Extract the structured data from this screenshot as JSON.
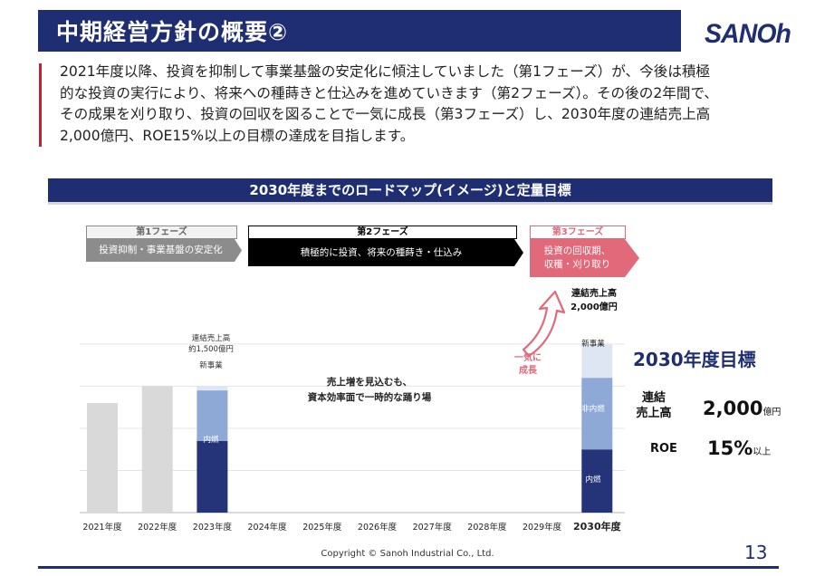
{
  "header": {
    "title": "中期経営方針の概要②",
    "logo_text": "SANOh"
  },
  "intro": {
    "lines": [
      "2021年度以降、投資を抑制して事業基盤の安定化に傾注していました（第1フェーズ）が、今後は積極",
      "的な投資の実行により、将来への種蒔きと仕込みを進めていきます（第2フェーズ）。その後の2年間で、",
      "その成果を刈り取り、投資の回収を図ることで一気に成長（第3フェーズ）し、2030年度の連結売上高",
      "2,000億円、ROE15%以上の目標の達成を目指します。"
    ]
  },
  "roadmap": {
    "title": "2030年度までのロードマップ(イメージ)と定量目標",
    "phases": [
      {
        "label": "第1フェーズ",
        "desc": [
          "投資抑制・事業基盤の安定化"
        ],
        "color": "#8c8c8c"
      },
      {
        "label": "第2フェーズ",
        "desc": [
          "積極的に投資、将来の種蒔き・仕込み"
        ],
        "color": "#000000"
      },
      {
        "label": "第3フェーズ",
        "desc": [
          "投資の回収期、",
          "収穫・刈り取り"
        ],
        "color": "#e2697a"
      }
    ]
  },
  "chart_data": {
    "type": "bar",
    "categories": [
      "2021年度",
      "2022年度",
      "2023年度",
      "2024年度",
      "2025年度",
      "2026年度",
      "2027年度",
      "2028年度",
      "2029年度",
      "2030年度"
    ],
    "values": [
      1300,
      1500,
      1500,
      null,
      null,
      null,
      null,
      null,
      null,
      2000
    ],
    "stacks": {
      "2023年度": [
        {
          "name": "内燃",
          "value": 850,
          "color": "#253378"
        },
        {
          "name": "非内燃",
          "value": 600,
          "color": "#8ea9d6"
        },
        {
          "name": "新事業",
          "value": 50,
          "color": "#dde6f2"
        }
      ],
      "2030年度": [
        {
          "name": "内燃",
          "value": 750,
          "color": "#253378"
        },
        {
          "name": "非内燃",
          "value": 850,
          "color": "#8ea9d6"
        },
        {
          "name": "新事業",
          "value": 400,
          "color": "#dde6f2"
        }
      ]
    },
    "plain_bar_color": "#d9d9d9",
    "ylim": [
      0,
      2300
    ],
    "grid": true,
    "annotations": {
      "bar2023_line1": "連結売上高",
      "bar2023_line2": "約1,500億円",
      "bar2023_new": "新事業",
      "bar2023_non": "非内燃",
      "bar2023_ice": "内燃",
      "bar2030_line1": "連結売上高",
      "bar2030_line2": "2,000億円",
      "bar2030_new": "新事業",
      "bar2030_non": "非内燃",
      "bar2030_ice": "内燃",
      "middle_line1": "売上増を見込むも、",
      "middle_line2": "資本効率面で一時的な踊り場",
      "growth_line1": "一気に",
      "growth_line2": "成長"
    }
  },
  "targets": {
    "title": "2030年度目標",
    "sales_label_1": "連結",
    "sales_label_2": "売上高",
    "sales_value": "2,000",
    "sales_unit": "億円",
    "roe_label": "ROE",
    "roe_value": "15%",
    "roe_unit": "以上"
  },
  "footer": {
    "copyright": "Copyright © Sanoh Industrial Co., Ltd.",
    "page_number": "13"
  },
  "colors": {
    "navy": "#1f2e72",
    "red_accent": "#c4202d",
    "pink": "#e2697a"
  }
}
